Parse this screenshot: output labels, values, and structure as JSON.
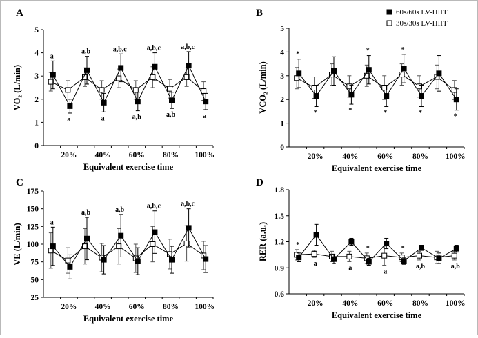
{
  "legend": {
    "items": [
      {
        "label": "60s/60s LV-HIIT",
        "marker": "filled-square"
      },
      {
        "label": "30s/30s LV-HIIT",
        "marker": "open-square"
      }
    ]
  },
  "chart_data": [
    {
      "panel": "A",
      "type": "line",
      "ylabel": "VO₂ (L/min)",
      "xlabel": "Equivalent exercise time",
      "yticks": [
        "0",
        "1",
        "2",
        "3",
        "4",
        "5"
      ],
      "ylim": [
        0,
        5
      ],
      "xtick_labels": [
        "20%",
        "40%",
        "60%",
        "80%",
        "100%"
      ],
      "series": [
        {
          "name": "60s/60s LV-HIIT",
          "values": [
            3.05,
            1.7,
            3.25,
            1.85,
            3.35,
            1.9,
            3.4,
            1.95,
            3.45,
            1.9
          ],
          "err": [
            0.6,
            0.3,
            0.6,
            0.4,
            0.6,
            0.4,
            0.6,
            0.35,
            0.6,
            0.35
          ]
        },
        {
          "name": "30s/30s LV-HIIT",
          "values": [
            2.75,
            2.4,
            2.95,
            2.4,
            2.9,
            2.4,
            2.95,
            2.45,
            2.95,
            2.35
          ],
          "err": [
            0.4,
            0.4,
            0.4,
            0.4,
            0.4,
            0.4,
            0.45,
            0.4,
            0.4,
            0.4
          ]
        }
      ],
      "annotations": [
        {
          "i": 0,
          "pos": "above",
          "text": "a"
        },
        {
          "i": 1,
          "pos": "below",
          "text": "a"
        },
        {
          "i": 2,
          "pos": "above",
          "text": "a,b"
        },
        {
          "i": 3,
          "pos": "below",
          "text": "a"
        },
        {
          "i": 4,
          "pos": "above",
          "text": "a,b,c"
        },
        {
          "i": 5,
          "pos": "below",
          "text": "a,b"
        },
        {
          "i": 6,
          "pos": "above",
          "text": "a,b,c"
        },
        {
          "i": 7,
          "pos": "below",
          "text": "a,b"
        },
        {
          "i": 8,
          "pos": "above",
          "text": "a,b,c"
        },
        {
          "i": 9,
          "pos": "below",
          "text": "a"
        }
      ]
    },
    {
      "panel": "B",
      "type": "line",
      "ylabel": "VCO₂ (L/min)",
      "xlabel": "Equivalent exercise time",
      "yticks": [
        "0",
        "1",
        "2",
        "3",
        "4",
        "5"
      ],
      "ylim": [
        0,
        5
      ],
      "xtick_labels": [
        "20%",
        "40%",
        "60%",
        "80%",
        "100%"
      ],
      "series": [
        {
          "name": "60s/60s LV-HIIT",
          "values": [
            3.1,
            2.15,
            3.2,
            2.2,
            3.25,
            2.15,
            3.3,
            2.15,
            3.1,
            2.0
          ],
          "err": [
            0.6,
            0.45,
            0.6,
            0.4,
            0.6,
            0.45,
            0.6,
            0.45,
            0.75,
            0.45
          ]
        },
        {
          "name": "30s/30s LV-HIIT",
          "values": [
            2.9,
            2.5,
            3.05,
            2.55,
            3.0,
            2.5,
            3.05,
            2.55,
            2.95,
            2.4
          ],
          "err": [
            0.45,
            0.45,
            0.45,
            0.45,
            0.45,
            0.5,
            0.45,
            0.45,
            0.5,
            0.4
          ]
        }
      ],
      "annotations": [
        {
          "i": 0,
          "pos": "above",
          "text": "*"
        },
        {
          "i": 1,
          "pos": "below",
          "text": "*"
        },
        {
          "i": 3,
          "pos": "below",
          "text": "*"
        },
        {
          "i": 4,
          "pos": "above",
          "text": "*"
        },
        {
          "i": 5,
          "pos": "below",
          "text": "*"
        },
        {
          "i": 6,
          "pos": "above",
          "text": "*"
        },
        {
          "i": 7,
          "pos": "below",
          "text": "*"
        },
        {
          "i": 9,
          "pos": "below",
          "text": "*"
        }
      ]
    },
    {
      "panel": "C",
      "type": "line",
      "ylabel": "VE (L/min)",
      "xlabel": "Equivalent exercise time",
      "yticks": [
        "25",
        "50",
        "75",
        "100",
        "125",
        "150",
        "175"
      ],
      "ylim": [
        25,
        175
      ],
      "xtick_labels": [
        "20%",
        "40%",
        "60%",
        "80%",
        "100%"
      ],
      "series": [
        {
          "name": "60s/60s LV-HIIT",
          "values": [
            97,
            68,
            108,
            78,
            112,
            76,
            117,
            78,
            123,
            79
          ],
          "err": [
            27,
            17,
            30,
            20,
            30,
            19,
            30,
            19,
            27,
            19
          ]
        },
        {
          "name": "30s/30s LV-HIIT",
          "values": [
            91,
            77,
            97,
            81,
            97,
            80,
            100,
            86,
            101,
            84
          ],
          "err": [
            25,
            18,
            25,
            20,
            25,
            20,
            25,
            21,
            25,
            20
          ]
        }
      ],
      "annotations": [
        {
          "i": 0,
          "pos": "above",
          "text": "a"
        },
        {
          "i": 2,
          "pos": "above",
          "text": "a,b"
        },
        {
          "i": 4,
          "pos": "above",
          "text": "a,b"
        },
        {
          "i": 6,
          "pos": "above",
          "text": "a,b,c"
        },
        {
          "i": 8,
          "pos": "above",
          "text": "a,b,c"
        }
      ]
    },
    {
      "panel": "D",
      "type": "line",
      "ylabel": "RER (a.u.)",
      "xlabel": "Equivalent exercise time",
      "yticks": [
        "0.6",
        "0.9",
        "1.2",
        "1.5",
        "1.8"
      ],
      "ylim": [
        0.6,
        1.8
      ],
      "xtick_labels": [
        "20%",
        "40%",
        "60%",
        "80%",
        "100%"
      ],
      "series": [
        {
          "name": "60s/60s LV-HIIT",
          "values": [
            1.02,
            1.28,
            1.0,
            1.2,
            0.97,
            1.18,
            0.98,
            1.13,
            1.01,
            1.12
          ],
          "err": [
            0.05,
            0.12,
            0.05,
            0.04,
            0.04,
            0.06,
            0.04,
            0.03,
            0.06,
            0.04
          ]
        },
        {
          "name": "30s/30s LV-HIIT",
          "values": [
            1.05,
            1.06,
            1.03,
            1.03,
            1.01,
            1.04,
            1.02,
            1.04,
            1.02,
            1.04
          ],
          "err": [
            0.06,
            0.04,
            0.06,
            0.06,
            0.06,
            0.11,
            0.05,
            0.05,
            0.07,
            0.05
          ]
        }
      ],
      "annotations": [
        {
          "i": 0,
          "pos": "above",
          "text": "*"
        },
        {
          "i": 1,
          "pos": "below",
          "text": "a"
        },
        {
          "i": 3,
          "pos": "below",
          "text": "a"
        },
        {
          "i": 4,
          "pos": "above",
          "text": "*"
        },
        {
          "i": 5,
          "pos": "below",
          "text": "a"
        },
        {
          "i": 6,
          "pos": "above",
          "text": "*"
        },
        {
          "i": 7,
          "pos": "below",
          "text": "a,b"
        },
        {
          "i": 9,
          "pos": "below",
          "text": "a,b"
        }
      ]
    }
  ]
}
